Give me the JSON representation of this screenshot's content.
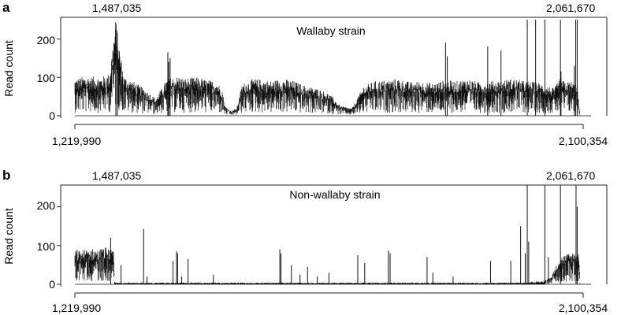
{
  "chart_data": [
    {
      "panel_label": "a",
      "type": "line",
      "title": "Wallaby strain",
      "ylabel": "Read count",
      "xlim": [
        1219990,
        2100354
      ],
      "ylim": [
        0,
        250
      ],
      "y_ticks": [
        0,
        100,
        200
      ],
      "bottom_ticks": [
        {
          "value": 1219990,
          "label": "1,219,990"
        },
        {
          "value": 2100354,
          "label": "2,100,354"
        }
      ],
      "top_labels": [
        {
          "value": 1487035,
          "label": "1,487,035"
        },
        {
          "value": 2061670,
          "label": "2,061,670"
        }
      ],
      "series": [
        {
          "x": [
            1219990,
            1240000,
            1265000,
            1280000,
            1291000,
            1297000,
            1305000,
            1320000,
            1340000,
            1360000,
            1380000,
            1400000,
            1410000,
            1430000,
            1450000,
            1465000,
            1475000,
            1480000,
            1490000,
            1500000,
            1510000,
            1530000,
            1560000,
            1580000,
            1600000,
            1620000,
            1640000,
            1660000,
            1680000,
            1700000,
            1720000,
            1740000,
            1760000,
            1780000,
            1800000,
            1820000,
            1840000,
            1860000,
            1880000,
            1900000,
            1920000,
            1940000,
            1960000,
            1980000,
            2000000,
            2020000,
            2040000,
            2050000,
            2060000,
            2070000,
            2080000,
            2090000,
            2095000,
            2100354
          ],
          "y": [
            75,
            80,
            78,
            85,
            200,
            140,
            80,
            70,
            55,
            35,
            75,
            80,
            75,
            78,
            72,
            70,
            55,
            20,
            10,
            15,
            65,
            75,
            70,
            75,
            70,
            60,
            55,
            45,
            20,
            15,
            60,
            70,
            72,
            75,
            68,
            70,
            65,
            72,
            70,
            75,
            68,
            70,
            72,
            75,
            70,
            68,
            60,
            55,
            75,
            68,
            70,
            60,
            0,
            0
          ]
        }
      ],
      "spikes": [
        {
          "x": 1291000,
          "y": 225
        },
        {
          "x": 1293500,
          "y": 215
        },
        {
          "x": 1381000,
          "y": 165
        },
        {
          "x": 1385000,
          "y": 150
        },
        {
          "x": 1382500,
          "y": 140
        },
        {
          "x": 1862000,
          "y": 190
        },
        {
          "x": 1865000,
          "y": 155
        },
        {
          "x": 1935000,
          "y": 180
        },
        {
          "x": 1958000,
          "y": 170
        },
        {
          "x": 2003500,
          "y": 250
        },
        {
          "x": 2018000,
          "y": 250
        },
        {
          "x": 2034000,
          "y": 250
        },
        {
          "x": 2061000,
          "y": 250
        },
        {
          "x": 2087500,
          "y": 250
        },
        {
          "x": 2090000,
          "y": 250
        },
        {
          "x": 2085000,
          "y": 130
        },
        {
          "x": 2062000,
          "y": 115
        }
      ]
    },
    {
      "panel_label": "b",
      "type": "line",
      "title": "Non-wallaby strain",
      "ylabel": "Read count",
      "xlim": [
        1219990,
        2100354
      ],
      "ylim": [
        0,
        250
      ],
      "y_ticks": [
        0,
        100,
        200
      ],
      "bottom_ticks": [
        {
          "value": 1219990,
          "label": "1,219,990"
        },
        {
          "value": 2100354,
          "label": "2,100,354"
        }
      ],
      "top_labels": [
        {
          "value": 1487035,
          "label": "1,487,035"
        },
        {
          "value": 2061670,
          "label": "2,061,670"
        }
      ],
      "series": [
        {
          "x": [
            1219990,
            1230000,
            1245000,
            1260000,
            1275000,
            1287000,
            1289000,
            1300000,
            1400000,
            1500000,
            1600000,
            1700000,
            1800000,
            1900000,
            1980000,
            2000000,
            2002000,
            2010000,
            2030000,
            2045000,
            2060000,
            2070000,
            2085000,
            2093000,
            2095000,
            2100354
          ],
          "y": [
            70,
            68,
            72,
            70,
            75,
            65,
            3,
            3,
            3,
            3,
            3,
            3,
            3,
            3,
            3,
            3,
            3,
            5,
            5,
            15,
            55,
            60,
            65,
            65,
            0,
            0
          ]
        }
      ],
      "spikes": [
        {
          "x": 1282000,
          "y": 120
        },
        {
          "x": 1300000,
          "y": 50
        },
        {
          "x": 1339000,
          "y": 143
        },
        {
          "x": 1345000,
          "y": 20
        },
        {
          "x": 1390000,
          "y": 60
        },
        {
          "x": 1396000,
          "y": 85
        },
        {
          "x": 1398000,
          "y": 80
        },
        {
          "x": 1405000,
          "y": 20
        },
        {
          "x": 1416000,
          "y": 65
        },
        {
          "x": 1460000,
          "y": 25
        },
        {
          "x": 1575000,
          "y": 90
        },
        {
          "x": 1577000,
          "y": 80
        },
        {
          "x": 1595000,
          "y": 50
        },
        {
          "x": 1610000,
          "y": 25
        },
        {
          "x": 1623000,
          "y": 45
        },
        {
          "x": 1640000,
          "y": 20
        },
        {
          "x": 1660000,
          "y": 30
        },
        {
          "x": 1710000,
          "y": 75
        },
        {
          "x": 1722000,
          "y": 55
        },
        {
          "x": 1763000,
          "y": 87
        },
        {
          "x": 1766000,
          "y": 80
        },
        {
          "x": 1830000,
          "y": 70
        },
        {
          "x": 1840000,
          "y": 30
        },
        {
          "x": 1875000,
          "y": 20
        },
        {
          "x": 1940000,
          "y": 60
        },
        {
          "x": 1975000,
          "y": 60
        },
        {
          "x": 1992000,
          "y": 150
        },
        {
          "x": 2000000,
          "y": 80
        },
        {
          "x": 2003500,
          "y": 255
        },
        {
          "x": 2006000,
          "y": 110
        },
        {
          "x": 2034000,
          "y": 255
        },
        {
          "x": 2040000,
          "y": 70
        },
        {
          "x": 2061000,
          "y": 255
        },
        {
          "x": 2088000,
          "y": 255
        },
        {
          "x": 2090000,
          "y": 200
        }
      ]
    }
  ]
}
